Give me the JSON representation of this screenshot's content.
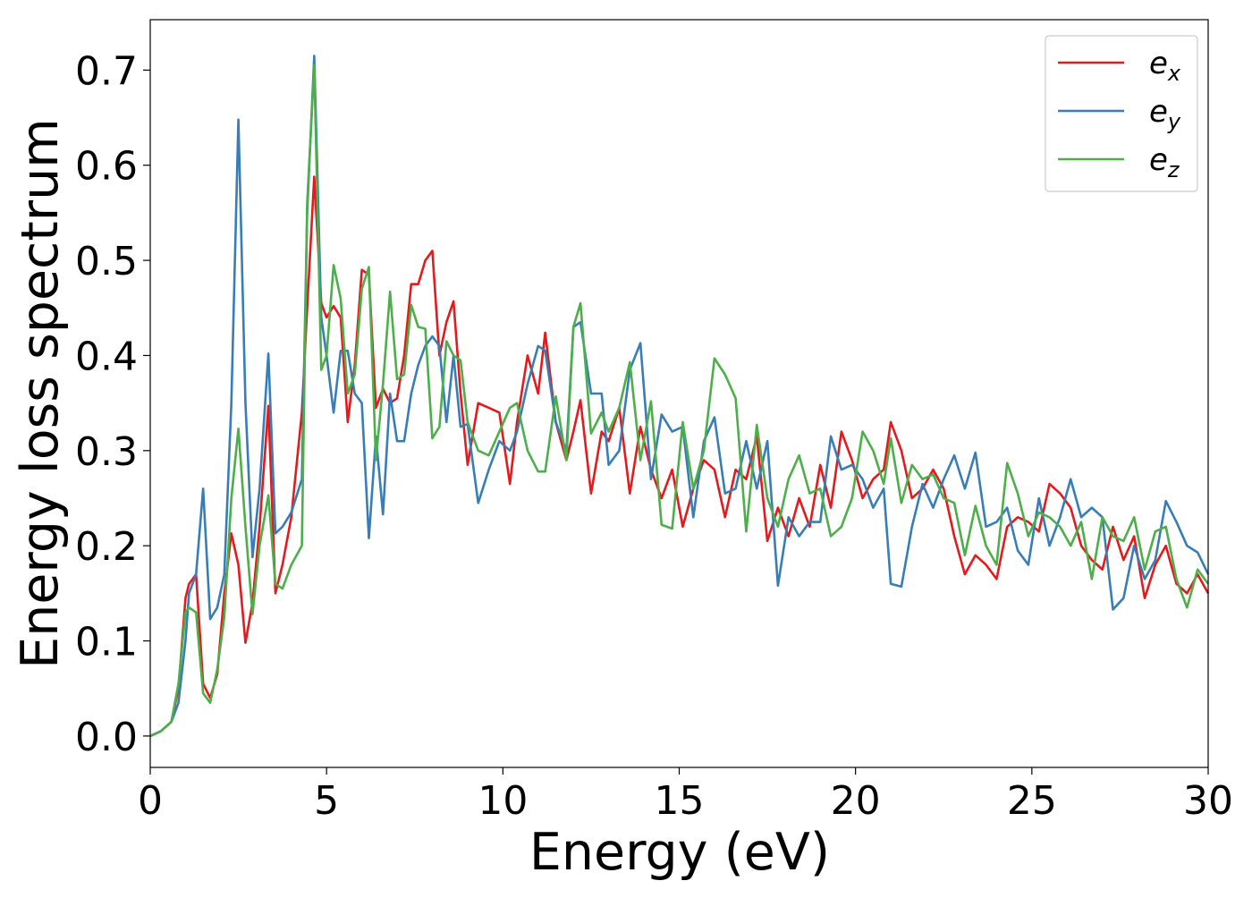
{
  "chart_data": {
    "type": "line",
    "xlabel": "Energy (eV)",
    "ylabel": "Energy loss spectrum",
    "x": [
      0,
      0.3,
      0.6,
      0.8,
      1.0,
      1.1,
      1.3,
      1.5,
      1.7,
      1.9,
      2.1,
      2.3,
      2.5,
      2.7,
      2.9,
      3.1,
      3.35,
      3.55,
      3.75,
      4.0,
      4.3,
      4.45,
      4.65,
      4.85,
      5.0,
      5.2,
      5.4,
      5.6,
      5.8,
      6.0,
      6.2,
      6.4,
      6.6,
      6.8,
      7.0,
      7.2,
      7.4,
      7.6,
      7.8,
      8.0,
      8.2,
      8.4,
      8.6,
      8.8,
      9.0,
      9.3,
      9.6,
      9.9,
      10.2,
      10.4,
      10.7,
      11.0,
      11.2,
      11.5,
      11.8,
      12.0,
      12.2,
      12.5,
      12.8,
      13.0,
      13.3,
      13.6,
      13.9,
      14.2,
      14.5,
      14.8,
      15.1,
      15.4,
      15.7,
      16.0,
      16.3,
      16.6,
      16.9,
      17.2,
      17.5,
      17.8,
      18.1,
      18.4,
      18.7,
      19.0,
      19.3,
      19.6,
      19.9,
      20.2,
      20.5,
      20.8,
      21.0,
      21.3,
      21.6,
      21.9,
      22.2,
      22.5,
      22.8,
      23.1,
      23.4,
      23.7,
      24.0,
      24.3,
      24.6,
      24.9,
      25.2,
      25.5,
      25.8,
      26.1,
      26.4,
      26.7,
      27.0,
      27.3,
      27.6,
      27.9,
      28.2,
      28.5,
      28.8,
      29.1,
      29.4,
      29.7,
      30.0
    ],
    "series": [
      {
        "name": "e_x",
        "color": "#e41a1c",
        "values": [
          0,
          0.005,
          0.015,
          0.05,
          0.145,
          0.16,
          0.17,
          0.055,
          0.04,
          0.065,
          0.15,
          0.213,
          0.18,
          0.098,
          0.14,
          0.22,
          0.347,
          0.15,
          0.18,
          0.23,
          0.34,
          0.45,
          0.588,
          0.455,
          0.44,
          0.452,
          0.44,
          0.33,
          0.39,
          0.49,
          0.485,
          0.345,
          0.365,
          0.35,
          0.355,
          0.4,
          0.475,
          0.475,
          0.5,
          0.51,
          0.4,
          0.435,
          0.457,
          0.36,
          0.285,
          0.35,
          0.345,
          0.34,
          0.265,
          0.33,
          0.4,
          0.36,
          0.424,
          0.33,
          0.29,
          0.32,
          0.353,
          0.255,
          0.32,
          0.31,
          0.345,
          0.255,
          0.325,
          0.28,
          0.25,
          0.28,
          0.22,
          0.26,
          0.29,
          0.28,
          0.23,
          0.28,
          0.27,
          0.315,
          0.205,
          0.24,
          0.21,
          0.25,
          0.22,
          0.285,
          0.24,
          0.32,
          0.29,
          0.25,
          0.27,
          0.28,
          0.33,
          0.3,
          0.25,
          0.26,
          0.28,
          0.26,
          0.21,
          0.17,
          0.19,
          0.18,
          0.165,
          0.22,
          0.23,
          0.225,
          0.215,
          0.265,
          0.255,
          0.24,
          0.2,
          0.185,
          0.175,
          0.22,
          0.185,
          0.21,
          0.145,
          0.18,
          0.2,
          0.16,
          0.15,
          0.17,
          0.15
        ]
      },
      {
        "name": "e_y",
        "color": "#377eb8",
        "values": [
          0,
          0.005,
          0.015,
          0.035,
          0.1,
          0.15,
          0.17,
          0.26,
          0.123,
          0.135,
          0.17,
          0.35,
          0.648,
          0.35,
          0.188,
          0.26,
          0.402,
          0.213,
          0.22,
          0.235,
          0.27,
          0.55,
          0.715,
          0.44,
          0.4,
          0.34,
          0.405,
          0.405,
          0.36,
          0.35,
          0.208,
          0.315,
          0.233,
          0.36,
          0.31,
          0.31,
          0.36,
          0.39,
          0.41,
          0.42,
          0.41,
          0.33,
          0.4,
          0.325,
          0.328,
          0.245,
          0.28,
          0.31,
          0.3,
          0.32,
          0.37,
          0.41,
          0.405,
          0.33,
          0.3,
          0.43,
          0.435,
          0.36,
          0.36,
          0.285,
          0.3,
          0.385,
          0.413,
          0.27,
          0.338,
          0.32,
          0.325,
          0.23,
          0.31,
          0.335,
          0.255,
          0.26,
          0.31,
          0.26,
          0.31,
          0.158,
          0.23,
          0.21,
          0.225,
          0.225,
          0.315,
          0.28,
          0.285,
          0.27,
          0.24,
          0.26,
          0.16,
          0.157,
          0.22,
          0.265,
          0.24,
          0.27,
          0.295,
          0.26,
          0.298,
          0.22,
          0.225,
          0.24,
          0.195,
          0.18,
          0.25,
          0.2,
          0.23,
          0.27,
          0.23,
          0.24,
          0.23,
          0.133,
          0.145,
          0.2,
          0.165,
          0.185,
          0.247,
          0.225,
          0.2,
          0.193,
          0.17
        ]
      },
      {
        "name": "e_z",
        "color": "#4daf4a",
        "values": [
          0,
          0.005,
          0.015,
          0.055,
          0.13,
          0.135,
          0.13,
          0.045,
          0.035,
          0.07,
          0.125,
          0.25,
          0.323,
          0.22,
          0.128,
          0.2,
          0.253,
          0.16,
          0.155,
          0.18,
          0.2,
          0.56,
          0.705,
          0.385,
          0.4,
          0.495,
          0.46,
          0.36,
          0.38,
          0.47,
          0.493,
          0.29,
          0.37,
          0.467,
          0.375,
          0.38,
          0.453,
          0.43,
          0.428,
          0.313,
          0.325,
          0.415,
          0.4,
          0.395,
          0.33,
          0.3,
          0.295,
          0.32,
          0.345,
          0.35,
          0.3,
          0.278,
          0.278,
          0.357,
          0.29,
          0.43,
          0.455,
          0.318,
          0.34,
          0.32,
          0.345,
          0.393,
          0.29,
          0.352,
          0.222,
          0.218,
          0.33,
          0.26,
          0.3,
          0.397,
          0.38,
          0.355,
          0.215,
          0.327,
          0.25,
          0.22,
          0.27,
          0.295,
          0.255,
          0.26,
          0.21,
          0.22,
          0.25,
          0.32,
          0.3,
          0.265,
          0.313,
          0.245,
          0.285,
          0.27,
          0.275,
          0.25,
          0.245,
          0.19,
          0.242,
          0.2,
          0.18,
          0.287,
          0.255,
          0.21,
          0.235,
          0.23,
          0.22,
          0.2,
          0.225,
          0.165,
          0.23,
          0.21,
          0.205,
          0.23,
          0.175,
          0.215,
          0.22,
          0.165,
          0.135,
          0.175,
          0.16
        ]
      }
    ],
    "xlim": [
      0,
      30
    ],
    "xticks": [
      0,
      5,
      10,
      15,
      20,
      25,
      30
    ],
    "ylim": [
      -0.033,
      0.753
    ],
    "yticks": [
      {
        "value": 0,
        "label": "0.0"
      },
      0.1,
      0.2,
      0.3,
      0.4,
      0.5,
      0.6,
      0.7
    ],
    "legend": "upper right",
    "grid": false
  }
}
